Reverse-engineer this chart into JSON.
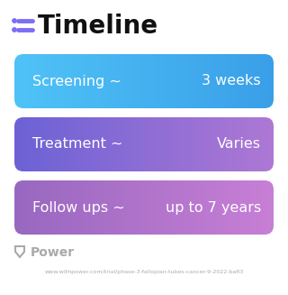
{
  "title": "Timeline",
  "title_icon_color": "#7c6ef5",
  "title_fontsize": 20,
  "title_fontweight": "bold",
  "background_color": "#ffffff",
  "rows": [
    {
      "label": "Screening ~",
      "value": "3 weeks",
      "grad_left": "#4dabf7",
      "grad_right": "#339af0"
    },
    {
      "label": "Treatment ~",
      "value": "Varies",
      "grad_left": "#6c63d8",
      "grad_right": "#b07cd8"
    },
    {
      "label": "Follow ups ~",
      "value": "up to 7 years",
      "grad_left": "#9b6ec8",
      "grad_right": "#c47fd4"
    }
  ],
  "footer_logo_text": "Power",
  "footer_url": "www.withpower.com/trial/phase-3-fallopian-tubes-cancer-9-2022-bafl3",
  "footer_color": "#aaaaaa",
  "row_text_color": "#ffffff",
  "row_fontsize": 11.5
}
